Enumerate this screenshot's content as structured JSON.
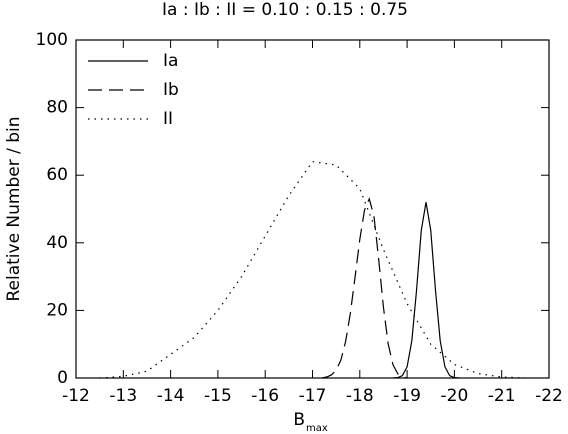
{
  "chart_data": {
    "type": "line",
    "title": "Ia : Ib : II = 0.10 : 0.15 : 0.75",
    "x_label": {
      "text": "B",
      "subscript": "max"
    },
    "y_label": "Relative Number / bin",
    "xlim": [
      -12,
      -22
    ],
    "xticks": [
      -12,
      -13,
      -14,
      -15,
      -16,
      -17,
      -18,
      -19,
      -20,
      -21,
      -22
    ],
    "ylim": [
      0,
      100
    ],
    "yticks": [
      0,
      20,
      40,
      60,
      80,
      100
    ],
    "legend": "top-left",
    "series": [
      {
        "name": "Ia",
        "color": "#000000",
        "dash": "solid",
        "x": [
          -18.7,
          -18.8,
          -18.9,
          -19.0,
          -19.1,
          -19.2,
          -19.3,
          -19.4,
          -19.5,
          -19.6,
          -19.7,
          -19.8,
          -19.9,
          -20.0,
          -20.1
        ],
        "values": [
          0,
          0.1,
          0.7,
          3.3,
          11,
          26,
          43.7,
          52,
          43.7,
          26,
          11,
          3.3,
          0.7,
          0.1,
          0
        ]
      },
      {
        "name": "Ib",
        "color": "#000000",
        "dash": "dashed",
        "x": [
          -17.2,
          -17.3,
          -17.4,
          -17.5,
          -17.6,
          -17.7,
          -17.8,
          -17.9,
          -18.0,
          -18.1,
          -18.2,
          -18.3,
          -18.4,
          -18.5,
          -18.6,
          -18.7,
          -18.8,
          -18.9,
          -19.0
        ],
        "values": [
          0,
          0.3,
          0.9,
          2.3,
          5.3,
          10.8,
          19.1,
          29.9,
          41,
          49.7,
          53,
          47.8,
          35,
          20.9,
          10.1,
          4,
          1.3,
          0.3,
          0
        ]
      },
      {
        "name": "II",
        "color": "#000000",
        "dash": "dotted",
        "x": [
          -12.5,
          -13,
          -13.5,
          -14,
          -14.5,
          -15,
          -15.5,
          -16,
          -16.5,
          -17,
          -17.5,
          -18,
          -18.5,
          -19,
          -19.5,
          -20,
          -20.5,
          -21,
          -21.5
        ],
        "values": [
          0,
          0.5,
          2,
          7,
          12,
          20,
          30,
          42,
          54,
          64,
          63,
          56,
          38,
          22,
          10,
          4,
          1.3,
          0.3,
          0
        ]
      }
    ]
  }
}
